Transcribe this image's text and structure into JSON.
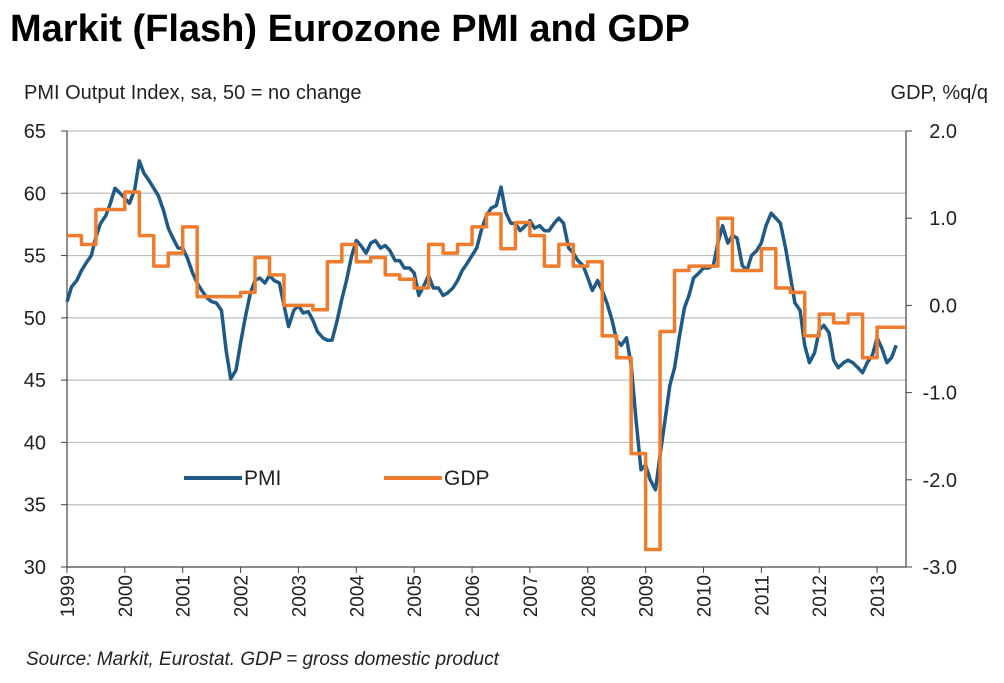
{
  "title": "Markit (Flash) Eurozone PMI and GDP",
  "source": "Source: Markit, Eurostat. GDP = gross domestic product",
  "colors": {
    "pmi": "#1f5a86",
    "gdp": "#ef7b2c",
    "grid": "#bfbfbf",
    "text": "#222222"
  },
  "chart_data": {
    "type": "line",
    "title": "Markit (Flash) Eurozone PMI and GDP",
    "ylabel": "PMI Output Index, sa, 50 = no change",
    "y2label": "GDP, %q/q",
    "ylim": [
      30,
      65
    ],
    "y2lim": [
      -3.0,
      2.0
    ],
    "yticks": [
      "65",
      "60",
      "55",
      "50",
      "45",
      "40",
      "35",
      "30"
    ],
    "y2ticks": [
      "2.0",
      "1.0",
      "0.0",
      "-1.0",
      "-2.0",
      "-3.0"
    ],
    "xlim": [
      1999,
      2013.5
    ],
    "xticks": [
      "1999",
      "2000",
      "2001",
      "2002",
      "2003",
      "2004",
      "2005",
      "2006",
      "2007",
      "2008",
      "2009",
      "2010",
      "2011",
      "2012",
      "2013"
    ],
    "legend_placement": "center-left",
    "grid": true,
    "series": [
      {
        "name": "PMI",
        "axis": "left",
        "style": "line",
        "points": [
          [
            1999.0,
            51.3
          ],
          [
            1999.08,
            52.5
          ],
          [
            1999.17,
            53.0
          ],
          [
            1999.25,
            53.8
          ],
          [
            1999.33,
            54.4
          ],
          [
            1999.42,
            55.0
          ],
          [
            1999.5,
            56.5
          ],
          [
            1999.58,
            57.6
          ],
          [
            1999.67,
            58.2
          ],
          [
            1999.75,
            59.2
          ],
          [
            1999.83,
            60.4
          ],
          [
            1999.92,
            60.0
          ],
          [
            2000.0,
            59.6
          ],
          [
            2000.08,
            59.2
          ],
          [
            2000.17,
            60.3
          ],
          [
            2000.25,
            62.6
          ],
          [
            2000.33,
            61.6
          ],
          [
            2000.42,
            61.0
          ],
          [
            2000.5,
            60.4
          ],
          [
            2000.58,
            59.8
          ],
          [
            2000.67,
            58.6
          ],
          [
            2000.75,
            57.2
          ],
          [
            2000.83,
            56.4
          ],
          [
            2000.92,
            55.6
          ],
          [
            2001.0,
            55.6
          ],
          [
            2001.08,
            54.8
          ],
          [
            2001.17,
            53.6
          ],
          [
            2001.25,
            52.8
          ],
          [
            2001.33,
            52.2
          ],
          [
            2001.42,
            51.6
          ],
          [
            2001.5,
            51.3
          ],
          [
            2001.58,
            51.2
          ],
          [
            2001.67,
            50.6
          ],
          [
            2001.75,
            47.4
          ],
          [
            2001.83,
            45.1
          ],
          [
            2001.92,
            45.8
          ],
          [
            2002.0,
            48.0
          ],
          [
            2002.08,
            50.0
          ],
          [
            2002.17,
            52.0
          ],
          [
            2002.25,
            53.0
          ],
          [
            2002.33,
            53.2
          ],
          [
            2002.42,
            52.8
          ],
          [
            2002.5,
            53.4
          ],
          [
            2002.58,
            53.0
          ],
          [
            2002.67,
            52.8
          ],
          [
            2002.75,
            51.0
          ],
          [
            2002.83,
            49.3
          ],
          [
            2002.92,
            50.6
          ],
          [
            2003.0,
            51.0
          ],
          [
            2003.08,
            50.4
          ],
          [
            2003.17,
            50.5
          ],
          [
            2003.25,
            49.8
          ],
          [
            2003.33,
            48.9
          ],
          [
            2003.42,
            48.4
          ],
          [
            2003.5,
            48.2
          ],
          [
            2003.58,
            48.2
          ],
          [
            2003.67,
            49.8
          ],
          [
            2003.75,
            51.5
          ],
          [
            2003.83,
            53.0
          ],
          [
            2003.92,
            55.0
          ],
          [
            2004.0,
            56.2
          ],
          [
            2004.08,
            55.8
          ],
          [
            2004.17,
            55.2
          ],
          [
            2004.25,
            56.0
          ],
          [
            2004.33,
            56.2
          ],
          [
            2004.42,
            55.6
          ],
          [
            2004.5,
            55.8
          ],
          [
            2004.58,
            55.4
          ],
          [
            2004.67,
            54.6
          ],
          [
            2004.75,
            54.6
          ],
          [
            2004.83,
            54.0
          ],
          [
            2004.92,
            54.0
          ],
          [
            2005.0,
            53.6
          ],
          [
            2005.08,
            51.8
          ],
          [
            2005.17,
            52.6
          ],
          [
            2005.25,
            53.4
          ],
          [
            2005.33,
            52.4
          ],
          [
            2005.42,
            52.4
          ],
          [
            2005.5,
            51.8
          ],
          [
            2005.58,
            52.0
          ],
          [
            2005.67,
            52.4
          ],
          [
            2005.75,
            53.0
          ],
          [
            2005.83,
            53.8
          ],
          [
            2005.92,
            54.4
          ],
          [
            2006.0,
            55.0
          ],
          [
            2006.08,
            55.6
          ],
          [
            2006.17,
            57.2
          ],
          [
            2006.25,
            58.2
          ],
          [
            2006.33,
            58.8
          ],
          [
            2006.42,
            59.0
          ],
          [
            2006.5,
            60.5
          ],
          [
            2006.58,
            58.5
          ],
          [
            2006.67,
            57.6
          ],
          [
            2006.75,
            57.6
          ],
          [
            2006.83,
            57.0
          ],
          [
            2006.92,
            57.4
          ],
          [
            2007.0,
            57.8
          ],
          [
            2007.08,
            57.2
          ],
          [
            2007.17,
            57.4
          ],
          [
            2007.25,
            57.0
          ],
          [
            2007.33,
            57.0
          ],
          [
            2007.42,
            57.6
          ],
          [
            2007.5,
            58.0
          ],
          [
            2007.58,
            57.6
          ],
          [
            2007.67,
            55.6
          ],
          [
            2007.75,
            55.2
          ],
          [
            2007.83,
            54.6
          ],
          [
            2007.92,
            54.2
          ],
          [
            2008.0,
            53.2
          ],
          [
            2008.08,
            52.2
          ],
          [
            2008.17,
            53.0
          ],
          [
            2008.25,
            52.2
          ],
          [
            2008.33,
            51.2
          ],
          [
            2008.42,
            49.8
          ],
          [
            2008.5,
            48.2
          ],
          [
            2008.58,
            47.8
          ],
          [
            2008.67,
            48.4
          ],
          [
            2008.75,
            46.2
          ],
          [
            2008.83,
            42.0
          ],
          [
            2008.92,
            37.8
          ],
          [
            2009.0,
            38.2
          ],
          [
            2009.08,
            37.0
          ],
          [
            2009.17,
            36.2
          ],
          [
            2009.25,
            39.0
          ],
          [
            2009.33,
            41.6
          ],
          [
            2009.42,
            44.6
          ],
          [
            2009.5,
            46.0
          ],
          [
            2009.58,
            48.4
          ],
          [
            2009.67,
            50.8
          ],
          [
            2009.75,
            51.8
          ],
          [
            2009.83,
            53.2
          ],
          [
            2009.92,
            53.6
          ],
          [
            2010.0,
            54.0
          ],
          [
            2010.08,
            54.0
          ],
          [
            2010.17,
            54.2
          ],
          [
            2010.25,
            56.0
          ],
          [
            2010.33,
            57.4
          ],
          [
            2010.42,
            56.0
          ],
          [
            2010.5,
            56.6
          ],
          [
            2010.58,
            56.4
          ],
          [
            2010.67,
            54.2
          ],
          [
            2010.75,
            53.8
          ],
          [
            2010.83,
            55.0
          ],
          [
            2010.92,
            55.4
          ],
          [
            2011.0,
            56.0
          ],
          [
            2011.08,
            57.4
          ],
          [
            2011.17,
            58.4
          ],
          [
            2011.25,
            58.0
          ],
          [
            2011.33,
            57.6
          ],
          [
            2011.42,
            55.6
          ],
          [
            2011.5,
            53.4
          ],
          [
            2011.58,
            51.2
          ],
          [
            2011.67,
            50.6
          ],
          [
            2011.75,
            47.8
          ],
          [
            2011.83,
            46.4
          ],
          [
            2011.92,
            47.2
          ],
          [
            2012.0,
            49.0
          ],
          [
            2012.08,
            49.4
          ],
          [
            2012.17,
            48.8
          ],
          [
            2012.25,
            46.6
          ],
          [
            2012.33,
            46.0
          ],
          [
            2012.42,
            46.4
          ],
          [
            2012.5,
            46.6
          ],
          [
            2012.58,
            46.4
          ],
          [
            2012.67,
            46.0
          ],
          [
            2012.75,
            45.6
          ],
          [
            2012.83,
            46.4
          ],
          [
            2012.92,
            47.0
          ],
          [
            2013.0,
            48.4
          ],
          [
            2013.08,
            47.6
          ],
          [
            2013.17,
            46.4
          ],
          [
            2013.25,
            46.8
          ],
          [
            2013.33,
            47.8
          ]
        ]
      },
      {
        "name": "GDP",
        "axis": "right",
        "style": "step",
        "points": [
          [
            1999.0,
            0.8
          ],
          [
            1999.25,
            0.7
          ],
          [
            1999.5,
            1.1
          ],
          [
            1999.75,
            1.1
          ],
          [
            2000.0,
            1.3
          ],
          [
            2000.25,
            0.8
          ],
          [
            2000.5,
            0.45
          ],
          [
            2000.75,
            0.6
          ],
          [
            2001.0,
            0.9
          ],
          [
            2001.25,
            0.1
          ],
          [
            2001.5,
            0.1
          ],
          [
            2001.75,
            0.1
          ],
          [
            2002.0,
            0.15
          ],
          [
            2002.25,
            0.55
          ],
          [
            2002.5,
            0.35
          ],
          [
            2002.75,
            0.0
          ],
          [
            2003.0,
            0.0
          ],
          [
            2003.25,
            -0.05
          ],
          [
            2003.5,
            0.5
          ],
          [
            2003.75,
            0.7
          ],
          [
            2004.0,
            0.5
          ],
          [
            2004.25,
            0.55
          ],
          [
            2004.5,
            0.35
          ],
          [
            2004.75,
            0.3
          ],
          [
            2005.0,
            0.2
          ],
          [
            2005.25,
            0.7
          ],
          [
            2005.5,
            0.6
          ],
          [
            2005.75,
            0.7
          ],
          [
            2006.0,
            0.9
          ],
          [
            2006.25,
            1.05
          ],
          [
            2006.5,
            0.65
          ],
          [
            2006.75,
            0.95
          ],
          [
            2007.0,
            0.8
          ],
          [
            2007.25,
            0.45
          ],
          [
            2007.5,
            0.7
          ],
          [
            2007.75,
            0.45
          ],
          [
            2008.0,
            0.5
          ],
          [
            2008.25,
            -0.35
          ],
          [
            2008.5,
            -0.6
          ],
          [
            2008.75,
            -1.7
          ],
          [
            2009.0,
            -2.8
          ],
          [
            2009.25,
            -0.3
          ],
          [
            2009.5,
            0.4
          ],
          [
            2009.75,
            0.45
          ],
          [
            2010.0,
            0.45
          ],
          [
            2010.25,
            1.0
          ],
          [
            2010.5,
            0.4
          ],
          [
            2010.75,
            0.4
          ],
          [
            2011.0,
            0.65
          ],
          [
            2011.25,
            0.2
          ],
          [
            2011.5,
            0.15
          ],
          [
            2011.75,
            -0.35
          ],
          [
            2012.0,
            -0.1
          ],
          [
            2012.25,
            -0.2
          ],
          [
            2012.5,
            -0.1
          ],
          [
            2012.75,
            -0.6
          ],
          [
            2013.0,
            -0.25
          ],
          [
            2013.25,
            -0.25
          ]
        ]
      }
    ]
  }
}
